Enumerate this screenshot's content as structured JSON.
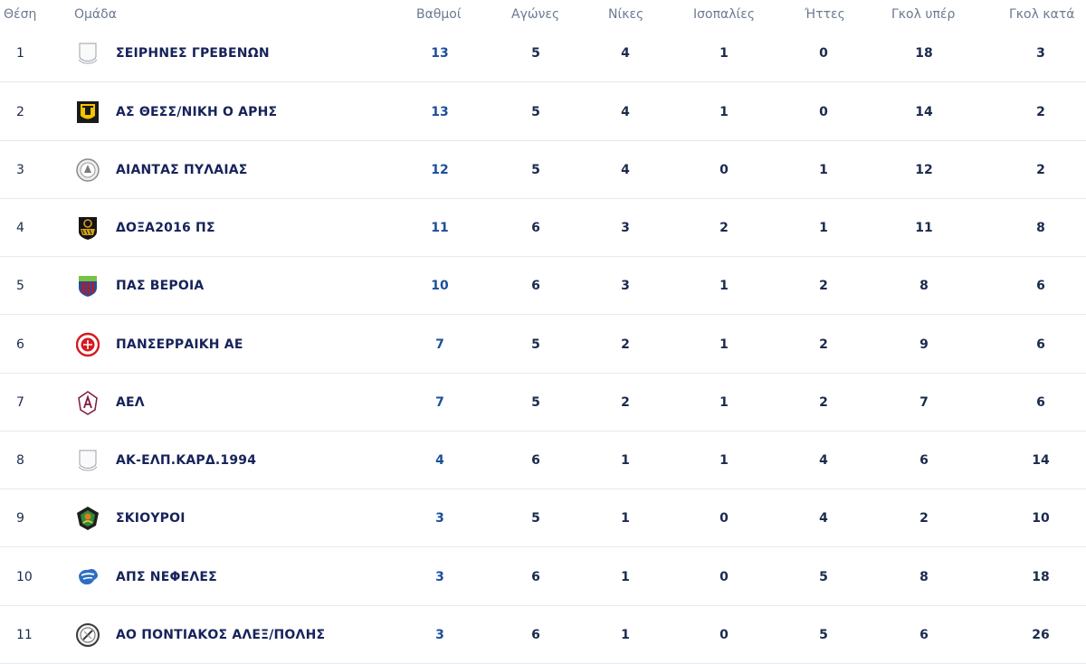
{
  "columns": {
    "position": "Θέση",
    "team": "Ομάδα",
    "points": "Βαθμοί",
    "played": "Αγώνες",
    "wins": "Νίκες",
    "draws": "Ισοπαλίες",
    "losses": "Ήττες",
    "goals_for": "Γκολ υπέρ",
    "goals_against": "Γκολ κατά"
  },
  "rows": [
    {
      "position": "1",
      "team": "ΣΕΙΡΗΝΕΣ ΓΡΕΒΕΝΩΝ",
      "logo": "placeholder-shield-icon",
      "points": "13",
      "played": "5",
      "wins": "4",
      "draws": "1",
      "losses": "0",
      "goals_for": "18",
      "goals_against": "3"
    },
    {
      "position": "2",
      "team": "ΑΣ ΘΕΣΣ/ΝΙΚΗ Ο ΑΡΗΣ",
      "logo": "aris-crest-icon",
      "points": "13",
      "played": "5",
      "wins": "4",
      "draws": "1",
      "losses": "0",
      "goals_for": "14",
      "goals_against": "2"
    },
    {
      "position": "3",
      "team": "ΑΙΑΝΤΑΣ ΠΥΛΑΙΑΣ",
      "logo": "aiantas-crest-icon",
      "points": "12",
      "played": "5",
      "wins": "4",
      "draws": "0",
      "losses": "1",
      "goals_for": "12",
      "goals_against": "2"
    },
    {
      "position": "4",
      "team": "ΔΟΞΑ2016 ΠΣ",
      "logo": "doxa-crest-icon",
      "points": "11",
      "played": "6",
      "wins": "3",
      "draws": "2",
      "losses": "1",
      "goals_for": "11",
      "goals_against": "8"
    },
    {
      "position": "5",
      "team": "ΠΑΣ ΒΕΡΟΙΑ",
      "logo": "veroia-crest-icon",
      "points": "10",
      "played": "6",
      "wins": "3",
      "draws": "1",
      "losses": "2",
      "goals_for": "8",
      "goals_against": "6"
    },
    {
      "position": "6",
      "team": "ΠΑΝΣΕΡΡΑΙΚΗ ΑΕ",
      "logo": "panserraikos-crest-icon",
      "points": "7",
      "played": "5",
      "wins": "2",
      "draws": "1",
      "losses": "2",
      "goals_for": "9",
      "goals_against": "6"
    },
    {
      "position": "7",
      "team": "ΑΕΛ",
      "logo": "ael-crest-icon",
      "points": "7",
      "played": "5",
      "wins": "2",
      "draws": "1",
      "losses": "2",
      "goals_for": "7",
      "goals_against": "6"
    },
    {
      "position": "8",
      "team": "ΑΚ-ΕΛΠ.ΚΑΡΔ.1994",
      "logo": "placeholder-shield-icon",
      "points": "4",
      "played": "6",
      "wins": "1",
      "draws": "1",
      "losses": "4",
      "goals_for": "6",
      "goals_against": "14"
    },
    {
      "position": "9",
      "team": "ΣΚΙΟΥΡΟΙ",
      "logo": "skiouroi-crest-icon",
      "points": "3",
      "played": "5",
      "wins": "1",
      "draws": "0",
      "losses": "4",
      "goals_for": "2",
      "goals_against": "10"
    },
    {
      "position": "10",
      "team": "ΑΠΣ ΝΕΦΕΛΕΣ",
      "logo": "nefeles-crest-icon",
      "points": "3",
      "played": "6",
      "wins": "1",
      "draws": "0",
      "losses": "5",
      "goals_for": "8",
      "goals_against": "18"
    },
    {
      "position": "11",
      "team": "ΑΟ ΠΟΝΤΙΑΚΟΣ ΑΛΕΞ/ΠΟΛΗΣ",
      "logo": "pontiakos-crest-icon",
      "points": "3",
      "played": "6",
      "wins": "1",
      "draws": "0",
      "losses": "5",
      "goals_for": "6",
      "goals_against": "26"
    }
  ],
  "colors": {
    "header_text": "#6b7a90",
    "team_text": "#16235a",
    "points_text": "#1c4f9c",
    "row_divider": "#e6e9ee"
  }
}
